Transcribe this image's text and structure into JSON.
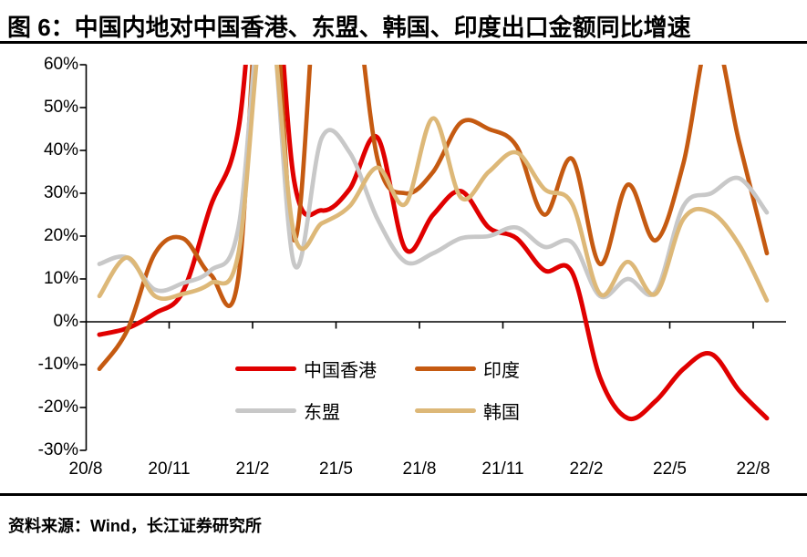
{
  "title": "图 6：中国内地对中国香港、东盟、韩国、印度出口金额同比增速",
  "source": "资料来源：Wind，长江证券研究所",
  "chart_data": {
    "type": "line",
    "title": "中国内地对中国香港、东盟、韩国、印度出口金额同比增速",
    "x": [
      "20/8",
      "20/9",
      "20/10",
      "20/11",
      "20/12",
      "21/1",
      "21/2",
      "21/3",
      "21/4",
      "21/5",
      "21/6",
      "21/7",
      "21/8",
      "21/9",
      "21/10",
      "21/11",
      "21/12",
      "22/1",
      "22/2",
      "22/3",
      "22/4",
      "22/5",
      "22/6",
      "22/7",
      "22/8"
    ],
    "x_tick_labels": [
      "20/8",
      "20/11",
      "21/2",
      "21/5",
      "21/8",
      "21/11",
      "22/2",
      "22/5",
      "22/8"
    ],
    "y_ticks": [
      {
        "label": "60%",
        "value": 60
      },
      {
        "label": "50%",
        "value": 50
      },
      {
        "label": "40%",
        "value": 40
      },
      {
        "label": "30%",
        "value": 30
      },
      {
        "label": "20%",
        "value": 20
      },
      {
        "label": "10%",
        "value": 10
      },
      {
        "label": "0%",
        "value": 0
      },
      {
        "label": "-10%",
        "value": -10
      },
      {
        "label": "-20%",
        "value": -20
      },
      {
        "label": "-30%",
        "value": -30
      }
    ],
    "ylim": [
      -30,
      60
    ],
    "unit": "percent YoY",
    "grid": false,
    "legend_position": "inside-bottom-center",
    "axis_color": "#000000",
    "series": [
      {
        "id": "cn-hongkong",
        "name": "中国香港",
        "color": "#E00000",
        "stroke_width": 5,
        "values": [
          -3,
          -1.5,
          2,
          7,
          27,
          45,
          102,
          33,
          26,
          31,
          43,
          17,
          25,
          30.5,
          22,
          19.5,
          12,
          11.5,
          -13,
          -22.5,
          -18.5,
          -11,
          -7.5,
          -16,
          -22.5
        ]
      },
      {
        "id": "india",
        "name": "印度",
        "color": "#C55A11",
        "stroke_width": 4.7,
        "values": [
          -11,
          -2,
          16,
          19.5,
          11,
          10.5,
          100,
          19,
          95,
          85,
          38,
          30,
          35,
          46.5,
          45,
          41,
          25,
          38,
          13.5,
          32,
          19,
          37,
          68,
          42,
          16
        ]
      },
      {
        "id": "asean",
        "name": "东盟",
        "color": "#C8C8C8",
        "stroke_width": 4.7,
        "values": [
          13.5,
          15,
          7.5,
          9,
          12,
          22,
          80,
          13.5,
          43,
          39.5,
          24,
          14,
          16,
          19.5,
          20,
          22,
          17.5,
          18.5,
          6,
          10,
          7,
          27,
          30,
          33.5,
          25.5
        ]
      },
      {
        "id": "korea",
        "name": "韩国",
        "color": "#DDB878",
        "stroke_width": 4.7,
        "values": [
          6,
          15,
          6,
          6.5,
          9,
          16,
          75,
          20.5,
          23,
          27,
          36,
          27.5,
          47.5,
          29,
          35,
          39.5,
          31,
          27.5,
          6.5,
          14,
          6.5,
          24,
          25.5,
          18,
          5
        ]
      }
    ]
  }
}
